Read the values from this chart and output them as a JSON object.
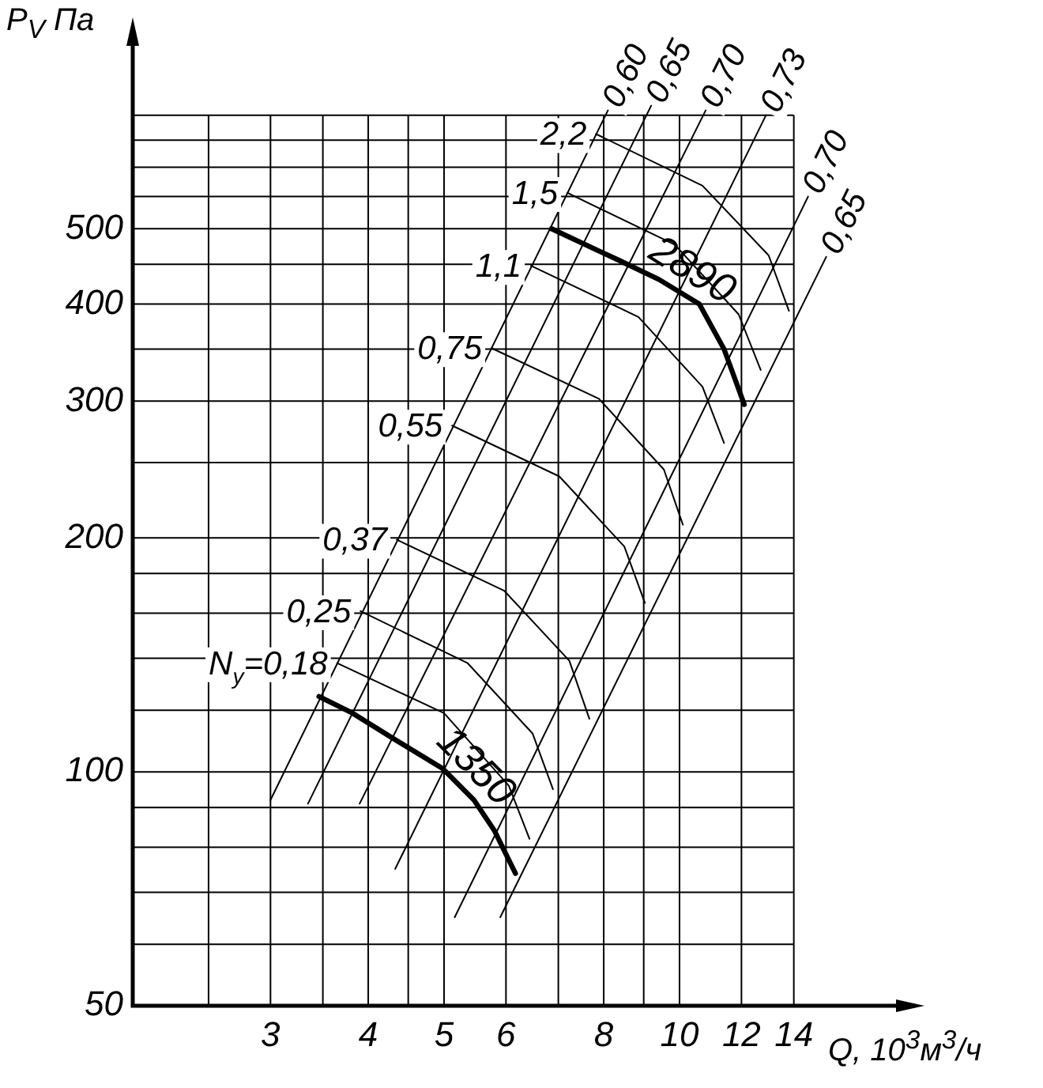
{
  "chart_data": {
    "type": "line",
    "xlabel": "Q, 10$^{3}$м$^{3}$/ч",
    "ylabel": "P$_{V}$ Па",
    "log": "xy",
    "grid": true,
    "marker": "none",
    "xlim": [
      2,
      20
    ],
    "ylim": [
      50,
      900
    ],
    "xticks": [
      {
        "value": 2,
        "label": null
      },
      {
        "value": 2.5,
        "label": null
      },
      3,
      {
        "value": 3.5,
        "label": null
      },
      4,
      {
        "value": 4.5,
        "label": null
      },
      5,
      6,
      {
        "value": 7,
        "label": null
      },
      8,
      {
        "value": 9,
        "label": null
      },
      10,
      12,
      14
    ],
    "yticks": [
      50,
      {
        "value": 60,
        "label": null
      },
      {
        "value": 70,
        "label": null
      },
      {
        "value": 80,
        "label": null
      },
      {
        "value": 90,
        "label": null
      },
      100,
      {
        "value": 120,
        "label": null
      },
      {
        "value": 140,
        "label": null
      },
      {
        "value": 160,
        "label": null
      },
      {
        "value": 180,
        "label": null
      },
      200,
      {
        "value": 250,
        "label": null
      },
      300,
      {
        "value": 350,
        "label": null
      },
      400,
      {
        "value": 450,
        "label": null
      },
      500,
      {
        "value": 550,
        "label": null
      },
      {
        "value": 600,
        "label": null
      },
      {
        "value": 650,
        "label": null
      },
      {
        "value": 700,
        "label": null
      }
    ],
    "series": [
      {
        "name": "1350",
        "color": "#000000",
        "x": [
          3.46,
          3.82,
          4.33,
          4.98,
          5.46,
          5.8,
          6.17
        ],
        "values": [
          125,
          119,
          110,
          101,
          92,
          84,
          74
        ]
      },
      {
        "name": "2890",
        "color": "#000000",
        "x": [
          6.86,
          8.38,
          9.42,
          10.6,
          11.4,
          12.1
        ],
        "values": [
          500,
          455,
          430,
          400,
          350,
          297
        ]
      },
      {
        "color": "#000000",
        "x": [
          8.1,
          3.0
        ],
        "values": [
          710,
          92
        ]
      },
      {
        "color": "#000000",
        "x": [
          9.2,
          3.35
        ],
        "values": [
          720,
          91
        ]
      },
      {
        "color": "#000000",
        "x": [
          10.8,
          3.9
        ],
        "values": [
          710,
          91
        ]
      },
      {
        "color": "#000000",
        "x": [
          12.9,
          4.33
        ],
        "values": [
          700,
          75
        ]
      },
      {
        "color": "#000000",
        "x": [
          14.6,
          5.16
        ],
        "values": [
          550,
          65
        ]
      },
      {
        "color": "#000000",
        "x": [
          15.4,
          5.9
        ],
        "values": [
          460,
          65
        ]
      },
      {
        "color": "#000000",
        "x": [
          3.65,
          5.0,
          6.05,
          6.43
        ],
        "values": [
          138,
          119,
          96,
          82
        ]
      },
      {
        "color": "#000000",
        "x": [
          3.91,
          5.36,
          6.49,
          6.89
        ],
        "values": [
          161,
          138,
          112,
          95
        ]
      },
      {
        "color": "#000000",
        "x": [
          4.35,
          5.97,
          7.23,
          7.67
        ],
        "values": [
          199,
          171,
          139,
          117
        ]
      },
      {
        "color": "#000000",
        "x": [
          5.12,
          7.02,
          8.5,
          9.03
        ],
        "values": [
          279,
          240,
          195,
          165
        ]
      },
      {
        "color": "#000000",
        "x": [
          5.75,
          7.89,
          9.55,
          10.1
        ],
        "values": [
          351,
          302,
          245,
          208
        ]
      },
      {
        "color": "#000000",
        "x": [
          6.46,
          8.86,
          10.7,
          11.4
        ],
        "values": [
          448,
          385,
          313,
          265
        ]
      },
      {
        "color": "#000000",
        "x": [
          7.19,
          9.86,
          11.9,
          12.7
        ],
        "values": [
          556,
          477,
          388,
          329
        ]
      },
      {
        "color": "#000000",
        "x": [
          7.82,
          10.7,
          13.0,
          13.8
        ],
        "values": [
          662,
          568,
          462,
          392
        ]
      }
    ],
    "annotations": [
      {
        "text": "0,60",
        "x": 8.1,
        "y": 710
      },
      {
        "text": "0,65",
        "x": 9.2,
        "y": 720
      },
      {
        "text": "0,70",
        "x": 10.8,
        "y": 710
      },
      {
        "text": "0,73",
        "x": 12.9,
        "y": 700
      },
      {
        "text": "0,70",
        "x": 14.6,
        "y": 550
      },
      {
        "text": "0,65",
        "x": 15.4,
        "y": 460
      },
      {
        "text": "N$_{у}$=0,18",
        "x": 3.65,
        "y": 138
      },
      {
        "text": "0,25",
        "x": 3.91,
        "y": 161
      },
      {
        "text": "0,37",
        "x": 4.35,
        "y": 199
      },
      {
        "text": "0,55",
        "x": 5.12,
        "y": 279
      },
      {
        "text": "0,75",
        "x": 5.75,
        "y": 351
      },
      {
        "text": "1,1",
        "x": 6.46,
        "y": 448
      },
      {
        "text": "1,5",
        "x": 7.19,
        "y": 556
      },
      {
        "text": "2,2",
        "x": 7.82,
        "y": 662
      }
    ]
  }
}
